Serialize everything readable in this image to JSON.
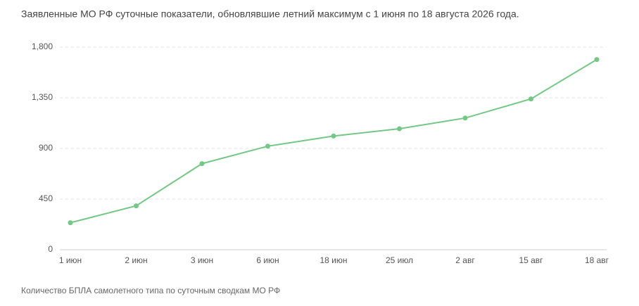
{
  "chart_data": {
    "type": "line",
    "title": "Заявленные МО РФ суточные показатели, обновлявшие летний максимум с 1 июня по 18 августа 2026 года.",
    "note": "Количество БПЛА самолетного типа по суточным сводкам МО РФ",
    "categories": [
      "1 июн",
      "2 июн",
      "3 июн",
      "6 июн",
      "18 июн",
      "25 июл",
      "2 авг",
      "15 авг",
      "18 авг"
    ],
    "series": [
      {
        "name": "БПЛА",
        "color": "#74c886",
        "values": [
          240,
          390,
          765,
          920,
          1010,
          1075,
          1170,
          1340,
          1690
        ]
      }
    ],
    "ylim": [
      0,
      1800
    ],
    "yticks": [
      0,
      450,
      900,
      {
        "value": 1350,
        "label": "1,350"
      },
      {
        "value": 1800,
        "label": "1,800"
      }
    ],
    "grid": true
  }
}
